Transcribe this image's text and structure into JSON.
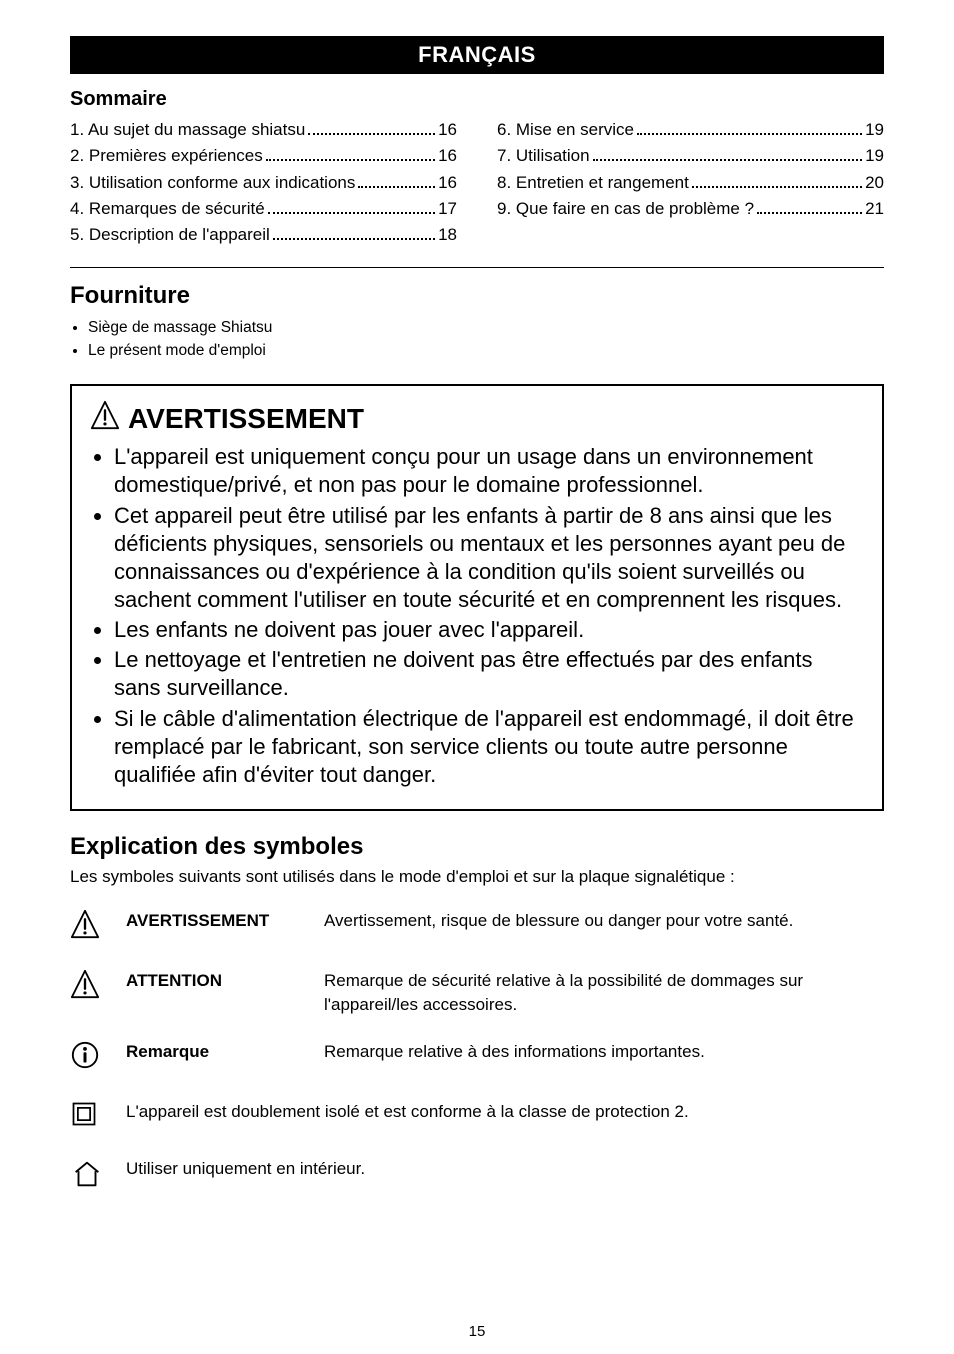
{
  "banner": "FRANÇAIS",
  "sommaire_title": "Sommaire",
  "toc_left": [
    {
      "label": "1. Au sujet du massage shiatsu",
      "page": "16"
    },
    {
      "label": "2. Premières expériences",
      "page": "16"
    },
    {
      "label": "3. Utilisation conforme aux indications",
      "page": "16"
    },
    {
      "label": "4. Remarques de sécurité",
      "page": "17"
    },
    {
      "label": "5. Description de l'appareil",
      "page": "18"
    }
  ],
  "toc_right": [
    {
      "label": "6. Mise en service",
      "page": "19"
    },
    {
      "label": "7. Utilisation",
      "page": "19"
    },
    {
      "label": "8. Entretien et rangement",
      "page": "20"
    },
    {
      "label": "9. Que faire en cas de problème ?",
      "page": "21"
    }
  ],
  "fourniture": {
    "title": "Fourniture",
    "items": [
      "Siège de massage Shiatsu",
      "Le présent mode d'emploi"
    ]
  },
  "warning": {
    "title": "AVERTISSEMENT",
    "bullets": [
      "L'appareil est uniquement conçu pour un usage dans un environnement domestique/privé, et non pas pour le domaine professionnel.",
      "Cet appareil peut être utilisé par les enfants à partir de 8 ans ainsi que les déficients physiques, sensoriels ou mentaux et les personnes ayant peu de connaissances ou d'expérience à la condition qu'ils soient surveillés ou sachent comment l'utiliser en toute sécurité et en comprennent les risques.",
      "Les enfants ne doivent pas jouer avec l'appareil.",
      "Le nettoyage et l'entretien ne doivent pas être effectués par des enfants sans surveillance.",
      "Si le câble d'alimentation électrique de l'appareil est endommagé, il doit être remplacé par le fabricant, son service clients ou toute autre personne qualifiée afin d'éviter tout danger."
    ]
  },
  "symbols": {
    "title": "Explication des symboles",
    "intro": "Les symboles suivants sont utilisés dans le mode d'emploi et sur la plaque signalétique :",
    "rows": [
      {
        "icon": "warning-triangle-icon",
        "term": "AVERTISSEMENT",
        "desc": "Avertissement, risque de blessure ou danger pour votre santé."
      },
      {
        "icon": "warning-triangle-icon",
        "term": "ATTENTION",
        "desc": "Remarque de sécurité relative à la possibilité de dommages sur l'appareil/les accessoires."
      },
      {
        "icon": "info-icon",
        "term": "Remarque",
        "desc": "Remarque relative à des informations importantes."
      },
      {
        "icon": "double-insulation-icon",
        "term": "",
        "desc": "L'appareil est doublement isolé et est conforme à la classe de protection 2."
      },
      {
        "icon": "indoor-use-icon",
        "term": "",
        "desc": "Utiliser uniquement en intérieur."
      }
    ]
  },
  "footer_page": "15",
  "icons_svg": {
    "warning-triangle-icon": "<svg viewBox='0 0 32 32' class='tri'><polygon points='16,2 30,30 2,30' fill='none' stroke='#000' stroke-width='2' stroke-linejoin='round'/><line x1='16' y1='11' x2='16' y2='21' stroke='#000' stroke-width='2.5' stroke-linecap='round'/><circle cx='16' cy='25.5' r='1.7' fill='#000'/></svg>",
    "info-icon": "<svg viewBox='0 0 32 32' width='30' height='30'><circle cx='16' cy='16' r='13' fill='none' stroke='#000' stroke-width='2'/><circle cx='16' cy='9.5' r='2' fill='#000'/><rect x='14.4' y='13' width='3.2' height='11' fill='#000' rx='1'/></svg>",
    "double-insulation-icon": "<svg viewBox='0 0 32 32' width='28' height='28'><rect x='4' y='4' width='24' height='24' fill='none' stroke='#000' stroke-width='2'/><rect x='9' y='9' width='14' height='14' fill='none' stroke='#000' stroke-width='2'/></svg>",
    "indoor-use-icon": "<svg viewBox='0 0 36 36' width='34' height='34'><path d='M6 16 L18 6 L30 16' fill='none' stroke='#000' stroke-width='2' stroke-linejoin='round'/><path d='M9 15 L9 30 L27 30 L27 15' fill='none' stroke='#000' stroke-width='2' stroke-linejoin='round'/></svg>"
  },
  "colors": {
    "banner_bg": "#000000",
    "banner_fg": "#ffffff",
    "text": "#000000",
    "background": "#ffffff"
  }
}
